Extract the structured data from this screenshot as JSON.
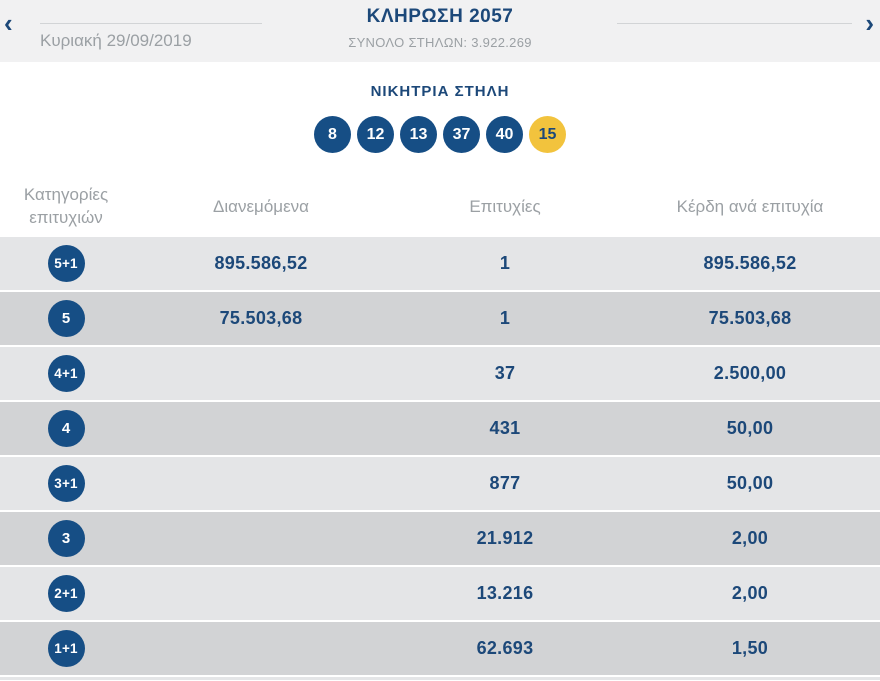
{
  "header": {
    "title": "ΚΛΗΡΩΣΗ 2057",
    "subtitle": "ΣΥΝΟΛΟ ΣΤΗΛΩΝ: 3.922.269",
    "date": "Κυριακή 29/09/2019",
    "prev_icon": "‹",
    "next_icon": "›"
  },
  "winning": {
    "title": "ΝΙΚΗΤΡΙΑ ΣΤΗΛΗ",
    "numbers": [
      "8",
      "12",
      "13",
      "37",
      "40"
    ],
    "bonus": "15"
  },
  "table": {
    "headers": {
      "category": "Κατηγορίες επιτυχιών",
      "distributed": "Διανεμόμενα",
      "winners": "Επιτυχίες",
      "prize": "Κέρδη ανά επιτυχία"
    },
    "rows": [
      {
        "category": "5+1",
        "distributed": "895.586,52",
        "winners": "1",
        "prize": "895.586,52"
      },
      {
        "category": "5",
        "distributed": "75.503,68",
        "winners": "1",
        "prize": "75.503,68"
      },
      {
        "category": "4+1",
        "distributed": "",
        "winners": "37",
        "prize": "2.500,00"
      },
      {
        "category": "4",
        "distributed": "",
        "winners": "431",
        "prize": "50,00"
      },
      {
        "category": "3+1",
        "distributed": "",
        "winners": "877",
        "prize": "50,00"
      },
      {
        "category": "3",
        "distributed": "",
        "winners": "21.912",
        "prize": "2,00"
      },
      {
        "category": "2+1",
        "distributed": "",
        "winners": "13.216",
        "prize": "2,00"
      },
      {
        "category": "1+1",
        "distributed": "",
        "winners": "62.693",
        "prize": "1,50"
      }
    ]
  },
  "colors": {
    "navy_text": "#1c4879",
    "ball_blue": "#164e85",
    "bonus_yellow": "#f2c33d",
    "row_light": "#e4e5e7",
    "row_dark": "#d2d3d5",
    "band_gray": "#f1f1f2",
    "muted_text": "#9ba0a4"
  }
}
